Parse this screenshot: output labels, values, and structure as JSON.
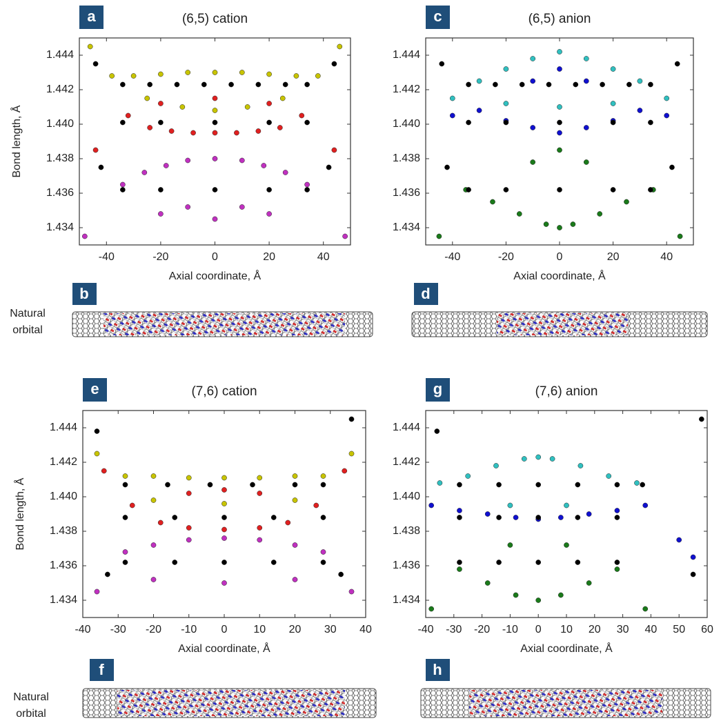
{
  "charts": [
    {
      "type": "scatter",
      "panel_label": "a",
      "title": "(6,5) cation",
      "xlabel": "Axial coordinate, Å",
      "ylabel": "Bond length, Å",
      "xlim": [
        -50,
        50
      ],
      "xticks": [
        -40,
        -20,
        0,
        20,
        40
      ],
      "ylim": [
        1.433,
        1.445
      ],
      "yticks": [
        1.434,
        1.436,
        1.438,
        {
          "value": 1.44,
          "label": "1.440"
        },
        1.442,
        1.444
      ],
      "series": [
        {
          "color": "#c8c400",
          "x": [
            -46,
            -38,
            -30,
            -20,
            -10,
            0,
            10,
            20,
            30,
            38,
            46,
            -25,
            -12,
            0,
            12,
            25
          ],
          "values": [
            1.4445,
            1.4428,
            1.4428,
            1.4429,
            1.443,
            1.443,
            1.443,
            1.4429,
            1.4428,
            1.4428,
            1.4445,
            1.4415,
            1.441,
            1.4408,
            1.441,
            1.4415
          ]
        },
        {
          "color": "#e02020",
          "x": [
            -44,
            -32,
            -24,
            -16,
            -8,
            0,
            8,
            16,
            24,
            32,
            44,
            -20,
            0,
            20
          ],
          "values": [
            1.4385,
            1.4405,
            1.4398,
            1.4396,
            1.4395,
            1.4395,
            1.4395,
            1.4396,
            1.4398,
            1.4405,
            1.4385,
            1.4412,
            1.4415,
            1.4412
          ]
        },
        {
          "color": "#c030c0",
          "x": [
            -48,
            -34,
            -26,
            -18,
            -10,
            0,
            10,
            18,
            26,
            34,
            48,
            -20,
            0,
            20,
            -10,
            10
          ],
          "values": [
            1.4335,
            1.4365,
            1.4372,
            1.4376,
            1.4379,
            1.438,
            1.4379,
            1.4376,
            1.4372,
            1.4365,
            1.4335,
            1.4348,
            1.4345,
            1.4348,
            1.4352,
            1.4352
          ]
        },
        {
          "color": "#000000",
          "x": [
            -34,
            -24,
            -14,
            -4,
            6,
            16,
            26,
            34,
            -34,
            -20,
            0,
            20,
            34,
            -34,
            -20,
            0,
            20,
            34,
            -42,
            42,
            -44,
            44
          ],
          "values": [
            1.4423,
            1.4423,
            1.4423,
            1.4423,
            1.4423,
            1.4423,
            1.4423,
            1.4423,
            1.4401,
            1.4401,
            1.4401,
            1.4401,
            1.4401,
            1.4362,
            1.4362,
            1.4362,
            1.4362,
            1.4362,
            1.4375,
            1.4375,
            1.4435,
            1.4435
          ]
        }
      ]
    },
    {
      "type": "scatter",
      "panel_label": "c",
      "title": "(6,5) anion",
      "xlabel": "Axial coordinate, Å",
      "xlim": [
        -50,
        50
      ],
      "xticks": [
        -40,
        -20,
        0,
        20,
        40
      ],
      "ylim": [
        1.433,
        1.445
      ],
      "yticks": [
        1.434,
        1.436,
        1.438,
        {
          "value": 1.44,
          "label": "1.440"
        },
        1.442,
        1.444
      ],
      "series": [
        {
          "color": "#30c0c0",
          "x": [
            -40,
            -30,
            -20,
            -10,
            0,
            10,
            20,
            30,
            40,
            -20,
            0,
            20
          ],
          "values": [
            1.4415,
            1.4425,
            1.4432,
            1.4438,
            1.4442,
            1.4438,
            1.4432,
            1.4425,
            1.4415,
            1.4412,
            1.441,
            1.4412
          ]
        },
        {
          "color": "#1010d0",
          "x": [
            -40,
            -30,
            -20,
            -10,
            0,
            10,
            20,
            30,
            40,
            -10,
            0,
            10
          ],
          "values": [
            1.4405,
            1.4408,
            1.4402,
            1.4398,
            1.4395,
            1.4398,
            1.4402,
            1.4408,
            1.4405,
            1.4425,
            1.4432,
            1.4425
          ]
        },
        {
          "color": "#1a7a1a",
          "x": [
            -45,
            -35,
            -25,
            -15,
            -5,
            0,
            5,
            15,
            25,
            35,
            45,
            -10,
            0,
            10
          ],
          "values": [
            1.4335,
            1.4362,
            1.4355,
            1.4348,
            1.4342,
            1.434,
            1.4342,
            1.4348,
            1.4355,
            1.4362,
            1.4335,
            1.4378,
            1.4385,
            1.4378
          ]
        },
        {
          "color": "#000000",
          "x": [
            -34,
            -24,
            -14,
            -4,
            6,
            16,
            26,
            34,
            -34,
            -20,
            0,
            20,
            34,
            -34,
            -20,
            0,
            20,
            34,
            -42,
            42,
            -44,
            44
          ],
          "values": [
            1.4423,
            1.4423,
            1.4423,
            1.4423,
            1.4423,
            1.4423,
            1.4423,
            1.4423,
            1.4401,
            1.4401,
            1.4401,
            1.4401,
            1.4401,
            1.4362,
            1.4362,
            1.4362,
            1.4362,
            1.4362,
            1.4375,
            1.4375,
            1.4435,
            1.4435
          ]
        }
      ]
    },
    {
      "type": "scatter",
      "panel_label": "e",
      "title": "(7,6) cation",
      "xlabel": "Axial coordinate, Å",
      "ylabel": "Bond length, Å",
      "xlim": [
        -40,
        40
      ],
      "xticks": [
        -40,
        -30,
        -20,
        -10,
        0,
        10,
        20,
        30,
        40
      ],
      "ylim": [
        1.433,
        1.445
      ],
      "yticks": [
        1.434,
        1.436,
        1.438,
        {
          "value": 1.44,
          "label": "1.440"
        },
        1.442,
        1.444
      ],
      "series": [
        {
          "color": "#c8c400",
          "x": [
            -36,
            -28,
            -20,
            -10,
            0,
            10,
            20,
            28,
            36,
            -20,
            0,
            20
          ],
          "values": [
            1.4425,
            1.4412,
            1.4412,
            1.4411,
            1.4411,
            1.4411,
            1.4412,
            1.4412,
            1.4425,
            1.4398,
            1.4396,
            1.4398
          ]
        },
        {
          "color": "#e02020",
          "x": [
            -34,
            -26,
            -18,
            -10,
            0,
            10,
            18,
            26,
            34,
            -10,
            0,
            10
          ],
          "values": [
            1.4415,
            1.4395,
            1.4385,
            1.4382,
            1.4381,
            1.4382,
            1.4385,
            1.4395,
            1.4415,
            1.4402,
            1.4404,
            1.4402
          ]
        },
        {
          "color": "#c030c0",
          "x": [
            -36,
            -28,
            -20,
            -10,
            0,
            10,
            20,
            28,
            36,
            -20,
            0,
            20
          ],
          "values": [
            1.4345,
            1.4368,
            1.4372,
            1.4375,
            1.4376,
            1.4375,
            1.4372,
            1.4368,
            1.4345,
            1.4352,
            1.435,
            1.4352
          ]
        },
        {
          "color": "#000000",
          "x": [
            -28,
            -16,
            -4,
            8,
            20,
            28,
            -28,
            -14,
            0,
            14,
            28,
            -28,
            -14,
            0,
            14,
            28,
            -36,
            36,
            -33,
            33
          ],
          "values": [
            1.4407,
            1.4407,
            1.4407,
            1.4407,
            1.4407,
            1.4407,
            1.4388,
            1.4388,
            1.4388,
            1.4388,
            1.4388,
            1.4362,
            1.4362,
            1.4362,
            1.4362,
            1.4362,
            1.4438,
            1.4445,
            1.4355,
            1.4355
          ]
        }
      ]
    },
    {
      "type": "scatter",
      "panel_label": "g",
      "title": "(7,6) anion",
      "xlabel": "Axial coordinate, Å",
      "xlim": [
        -40,
        60
      ],
      "xticks": [
        -40,
        -30,
        -20,
        -10,
        0,
        10,
        20,
        30,
        40,
        50,
        60
      ],
      "ylim": [
        1.433,
        1.445
      ],
      "yticks": [
        1.434,
        1.436,
        1.438,
        {
          "value": 1.44,
          "label": "1.440"
        },
        1.442,
        1.444
      ],
      "series": [
        {
          "color": "#30c0c0",
          "x": [
            -35,
            -25,
            -15,
            -5,
            0,
            5,
            15,
            25,
            35,
            -10,
            10
          ],
          "values": [
            1.4408,
            1.4412,
            1.4418,
            1.4422,
            1.4423,
            1.4422,
            1.4418,
            1.4412,
            1.4408,
            1.4395,
            1.4395
          ]
        },
        {
          "color": "#1010d0",
          "x": [
            -38,
            -28,
            -18,
            -8,
            0,
            8,
            18,
            28,
            38,
            50,
            55
          ],
          "values": [
            1.4395,
            1.4392,
            1.439,
            1.4388,
            1.4387,
            1.4388,
            1.439,
            1.4392,
            1.4395,
            1.4375,
            1.4365
          ]
        },
        {
          "color": "#1a7a1a",
          "x": [
            -38,
            -28,
            -18,
            -8,
            0,
            8,
            18,
            28,
            38,
            -10,
            10
          ],
          "values": [
            1.4335,
            1.4358,
            1.435,
            1.4343,
            1.434,
            1.4343,
            1.435,
            1.4358,
            1.4335,
            1.4372,
            1.4372
          ]
        },
        {
          "color": "#000000",
          "x": [
            -28,
            -14,
            0,
            14,
            28,
            37,
            -28,
            -14,
            0,
            14,
            28,
            -28,
            -14,
            0,
            14,
            28,
            -36,
            55,
            58
          ],
          "values": [
            1.4407,
            1.4407,
            1.4407,
            1.4407,
            1.4407,
            1.4407,
            1.4388,
            1.4388,
            1.4388,
            1.4388,
            1.4388,
            1.4362,
            1.4362,
            1.4362,
            1.4362,
            1.4362,
            1.4438,
            1.4355,
            1.4445
          ]
        }
      ]
    }
  ],
  "orbitals": [
    {
      "label": "b"
    },
    {
      "label": "d"
    },
    {
      "label": "f"
    },
    {
      "label": "h"
    }
  ],
  "orbital_caption": [
    "Natural",
    "orbital"
  ]
}
